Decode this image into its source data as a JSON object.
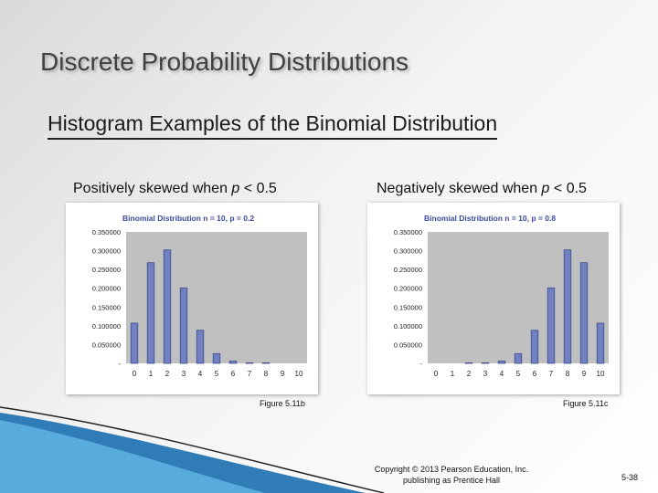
{
  "slide": {
    "title": "Discrete Probability Distributions",
    "subtitle": "Histogram Examples of the Binomial Distribution",
    "left_caption_prefix": "Positively skewed when ",
    "left_caption_var": "p",
    "left_caption_suffix": " < 0.5",
    "right_caption_prefix": "Negatively skewed when ",
    "right_caption_var": "p",
    "right_caption_suffix": " < 0.5",
    "fig_left": "Figure 5.11b",
    "fig_right": "Figure 5.11c",
    "copyright_line1": "Copyright © 2013 Pearson Education, Inc.",
    "copyright_line2": "publishing as Prentice Hall",
    "page_number": "5-38"
  },
  "colors": {
    "plot_background": "#c0c0c0",
    "bar_fill": "#7080c0",
    "bar_stroke": "#3a4a8a",
    "title_text": "#3a4a9a",
    "accent_blue": "#1a6fb0"
  },
  "chart_data": [
    {
      "type": "bar",
      "title": "Binomial Distribution n = 10, p = 0.2",
      "categories": [
        "0",
        "1",
        "2",
        "3",
        "4",
        "5",
        "6",
        "7",
        "8",
        "9",
        "10"
      ],
      "values": [
        0.107,
        0.268,
        0.302,
        0.201,
        0.088,
        0.026,
        0.006,
        0.001,
        0.0001,
        0.0,
        0.0
      ],
      "yticks": [
        "0.350000",
        "0.300000",
        "0.250000",
        "0.200000",
        "0.150000",
        "0.100000",
        "0.050000",
        "-"
      ],
      "ylim": [
        0,
        0.35
      ],
      "grid": false
    },
    {
      "type": "bar",
      "title": "Binomial Distribution n = 10, p = 0.8",
      "categories": [
        "0",
        "1",
        "2",
        "3",
        "4",
        "5",
        "6",
        "7",
        "8",
        "9",
        "10"
      ],
      "values": [
        0.0,
        0.0,
        0.0001,
        0.001,
        0.006,
        0.026,
        0.088,
        0.201,
        0.302,
        0.268,
        0.107
      ],
      "yticks": [
        "0.350000",
        "0.300000",
        "0.250000",
        "0.200000",
        "0.150000",
        "0.100000",
        "0.050000",
        "-"
      ],
      "ylim": [
        0,
        0.35
      ],
      "grid": false
    }
  ]
}
